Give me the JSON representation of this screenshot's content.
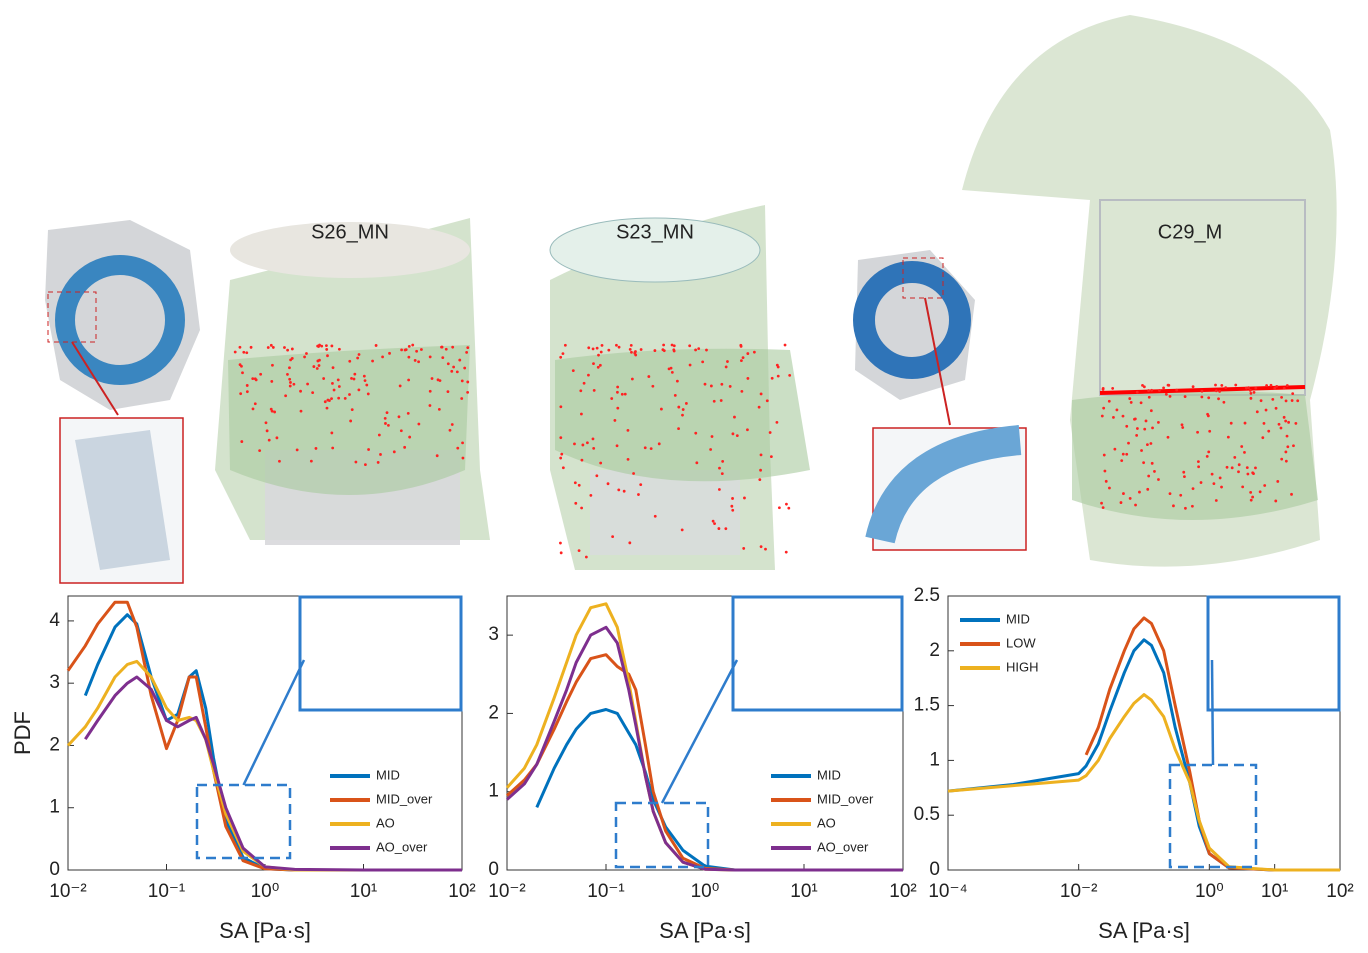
{
  "images": [
    {
      "label": "S26_MN"
    },
    {
      "label": "S23_MN"
    },
    {
      "label": "C29_M"
    }
  ],
  "chart_data": [
    {
      "type": "line",
      "xscale": "log",
      "xlabel": "SA [Pa·s]",
      "ylabel": "PDF",
      "legend": "lower right",
      "x": [
        0.01,
        0.015,
        0.02,
        0.03,
        0.04,
        0.05,
        0.07,
        0.1,
        0.13,
        0.17,
        0.2,
        0.25,
        0.3,
        0.4,
        0.6,
        1,
        2,
        10,
        100
      ],
      "xlim": [
        0.01,
        100
      ],
      "xticks": [
        {
          "value": 0.01,
          "label": "10⁻²"
        },
        {
          "value": 0.1,
          "label": "10⁻¹"
        },
        {
          "value": 1,
          "label": "10⁰"
        },
        {
          "value": 10,
          "label": "10¹"
        },
        {
          "value": 100,
          "label": "10²"
        }
      ],
      "ylim": [
        0,
        4.4
      ],
      "yticks": [
        0,
        1,
        2,
        3,
        4
      ],
      "series": [
        {
          "name": "MID",
          "color": "#0072bd",
          "values": [
            null,
            2.8,
            3.3,
            3.9,
            4.1,
            3.95,
            3.1,
            2.4,
            2.5,
            3.1,
            3.2,
            2.6,
            1.8,
            0.8,
            0.2,
            0.02,
            0,
            0,
            0
          ]
        },
        {
          "name": "MID_over",
          "color": "#d95319",
          "values": [
            3.2,
            3.6,
            3.95,
            4.3,
            4.3,
            3.9,
            2.8,
            1.95,
            2.4,
            3.1,
            3.1,
            2.3,
            1.6,
            0.7,
            0.15,
            0.02,
            0,
            0,
            null
          ]
        },
        {
          "name": "AO",
          "color": "#edb120",
          "values": [
            2.0,
            2.3,
            2.6,
            3.1,
            3.3,
            3.35,
            3.1,
            2.6,
            2.4,
            2.45,
            2.4,
            2.1,
            1.6,
            0.9,
            0.3,
            0.05,
            0,
            0,
            null
          ]
        },
        {
          "name": "AO_over",
          "color": "#7e2f8e",
          "values": [
            null,
            2.1,
            2.4,
            2.8,
            3.0,
            3.1,
            2.9,
            2.4,
            2.3,
            2.4,
            2.45,
            2.1,
            1.7,
            1.0,
            0.35,
            0.05,
            0.01,
            0,
            0
          ]
        }
      ]
    },
    {
      "type": "line",
      "xscale": "log",
      "xlabel": "SA [Pa·s]",
      "legend": "lower right",
      "x": [
        0.01,
        0.015,
        0.02,
        0.03,
        0.04,
        0.05,
        0.07,
        0.1,
        0.13,
        0.17,
        0.2,
        0.25,
        0.3,
        0.4,
        0.6,
        1,
        2,
        10,
        100
      ],
      "xlim": [
        0.01,
        100
      ],
      "xticks": [
        {
          "value": 0.01,
          "label": "10⁻²"
        },
        {
          "value": 0.1,
          "label": "10⁻¹"
        },
        {
          "value": 1,
          "label": "10⁰"
        },
        {
          "value": 10,
          "label": "10¹"
        },
        {
          "value": 100,
          "label": "10²"
        }
      ],
      "ylim": [
        0,
        3.5
      ],
      "yticks": [
        0,
        1,
        2,
        3
      ],
      "series": [
        {
          "name": "MID",
          "color": "#0072bd",
          "values": [
            null,
            null,
            0.8,
            1.3,
            1.6,
            1.8,
            2.0,
            2.05,
            2.0,
            1.75,
            1.6,
            1.25,
            0.9,
            0.55,
            0.25,
            0.05,
            0,
            0,
            0
          ]
        },
        {
          "name": "MID_over",
          "color": "#d95319",
          "values": [
            0.95,
            1.15,
            1.35,
            1.8,
            2.15,
            2.4,
            2.7,
            2.75,
            2.6,
            2.5,
            2.3,
            1.6,
            1.0,
            0.5,
            0.15,
            0.02,
            0,
            0,
            0
          ]
        },
        {
          "name": "AO",
          "color": "#edb120",
          "values": [
            1.05,
            1.3,
            1.6,
            2.2,
            2.65,
            3.0,
            3.35,
            3.4,
            3.1,
            2.4,
            1.9,
            1.2,
            0.75,
            0.35,
            0.1,
            0.01,
            0,
            0,
            0
          ]
        },
        {
          "name": "AO_over",
          "color": "#7e2f8e",
          "values": [
            0.9,
            1.1,
            1.35,
            1.9,
            2.3,
            2.65,
            3.0,
            3.1,
            2.9,
            2.3,
            1.85,
            1.2,
            0.75,
            0.35,
            0.1,
            0.01,
            0,
            0,
            0
          ]
        }
      ]
    },
    {
      "type": "line",
      "xscale": "log",
      "xlabel": "SA [Pa·s]",
      "legend": "upper left",
      "x": [
        0.0001,
        0.001,
        0.01,
        0.013,
        0.02,
        0.03,
        0.05,
        0.07,
        0.1,
        0.13,
        0.2,
        0.3,
        0.5,
        0.7,
        1,
        2,
        10,
        100
      ],
      "xlim": [
        0.0001,
        100
      ],
      "xticks": [
        {
          "value": 0.0001,
          "label": "10⁻⁴"
        },
        {
          "value": 0.01,
          "label": "10⁻²"
        },
        {
          "value": 1,
          "label": "10⁰"
        },
        {
          "value": 10,
          "label": "10¹"
        },
        {
          "value": 100,
          "label": "10²"
        }
      ],
      "ylim": [
        0,
        2.5
      ],
      "yticks": [
        0,
        0.5,
        1,
        1.5,
        2,
        2.5
      ],
      "series": [
        {
          "name": "MID",
          "color": "#0072bd",
          "values": [
            0.72,
            0.78,
            0.88,
            0.95,
            1.15,
            1.45,
            1.8,
            2.0,
            2.1,
            2.05,
            1.8,
            1.3,
            0.8,
            0.4,
            0.15,
            0.02,
            0,
            0
          ]
        },
        {
          "name": "LOW",
          "color": "#d95319",
          "values": [
            null,
            null,
            null,
            1.05,
            1.3,
            1.65,
            2.0,
            2.2,
            2.3,
            2.25,
            2.0,
            1.5,
            0.9,
            0.45,
            0.15,
            0.02,
            0,
            null
          ]
        },
        {
          "name": "HIGH",
          "color": "#edb120",
          "values": [
            0.72,
            0.77,
            0.82,
            0.86,
            1.0,
            1.2,
            1.4,
            1.52,
            1.6,
            1.55,
            1.4,
            1.1,
            0.8,
            0.45,
            0.2,
            0.03,
            0,
            0
          ]
        }
      ]
    }
  ]
}
